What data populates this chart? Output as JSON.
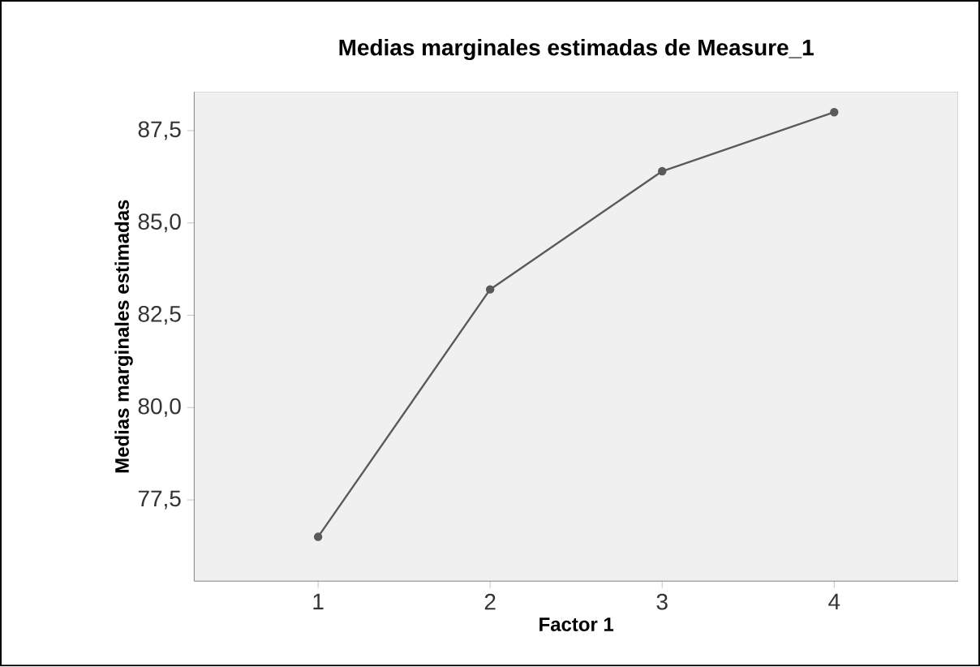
{
  "chart_data": {
    "type": "line",
    "title": "Medias marginales estimadas de Measure_1",
    "xlabel": "Factor 1",
    "ylabel": "Medias marginales estimadas",
    "x": [
      1,
      2,
      3,
      4
    ],
    "series": [
      {
        "color": "#5a5a5a",
        "values": [
          76.5,
          83.2,
          86.4,
          88.0
        ]
      }
    ],
    "xlim": [
      0.28,
      4.72
    ],
    "ylim": [
      75.3,
      88.55
    ],
    "xticks": [
      1,
      2,
      3,
      4
    ],
    "yticks": [
      {
        "value": 77.5,
        "label": "77,5"
      },
      {
        "value": 80.0,
        "label": "80,0"
      },
      {
        "value": 82.5,
        "label": "82,5"
      },
      {
        "value": 85.0,
        "label": "85,0"
      },
      {
        "value": 87.5,
        "label": "87,5"
      }
    ],
    "grid": false,
    "marker": "circle",
    "line_style": "solid"
  }
}
